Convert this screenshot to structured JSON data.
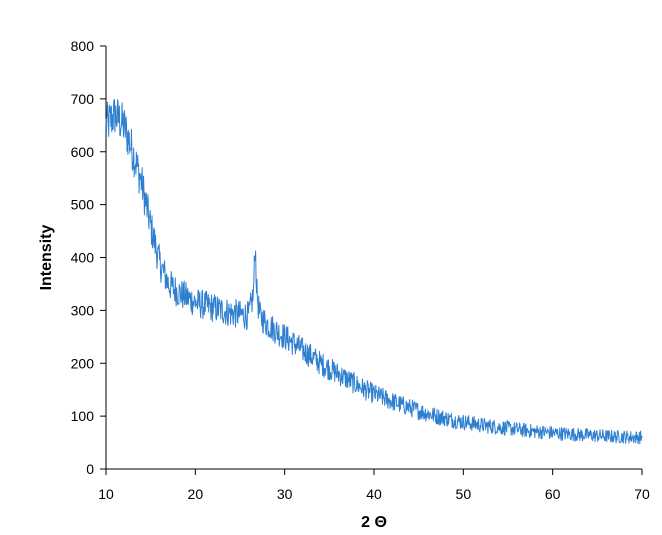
{
  "chart_data": {
    "type": "line",
    "title": "",
    "xlabel": "2 Θ",
    "ylabel": "Intensity",
    "xlim": [
      10,
      70
    ],
    "ylim": [
      0,
      800
    ],
    "x_ticks": [
      10,
      20,
      30,
      40,
      50,
      60,
      70
    ],
    "y_ticks": [
      0,
      100,
      200,
      300,
      400,
      500,
      600,
      700,
      800
    ],
    "x_tick_labels": [
      "10",
      "20",
      "30",
      "40",
      "50",
      "60",
      "70"
    ],
    "y_tick_labels": [
      "0",
      "100",
      "200",
      "300",
      "400",
      "500",
      "600",
      "700",
      "800"
    ],
    "grid": false,
    "legend": "none",
    "line_color": "#2f7fd0",
    "series": [
      {
        "x": [
          10,
          11,
          12,
          13,
          14,
          15,
          16,
          17,
          18,
          19,
          20,
          21,
          22,
          23,
          24,
          25,
          26,
          26.5,
          26.7,
          26.9,
          27.2,
          28,
          29,
          30,
          31,
          32,
          33,
          34,
          35,
          36,
          37,
          38,
          39,
          40,
          41,
          42,
          43,
          44,
          45,
          46,
          47,
          48,
          49,
          50,
          51,
          52,
          53,
          54,
          55,
          56,
          57,
          58,
          59,
          60,
          61,
          62,
          63,
          64,
          65,
          66,
          67,
          68,
          69,
          70
        ],
        "values": [
          650,
          670,
          650,
          600,
          540,
          460,
          390,
          350,
          335,
          325,
          315,
          310,
          305,
          300,
          295,
          292,
          290,
          330,
          425,
          330,
          290,
          275,
          262,
          250,
          238,
          225,
          213,
          200,
          190,
          180,
          170,
          160,
          150,
          142,
          135,
          128,
          122,
          116,
          110,
          105,
          100,
          96,
          92,
          89,
          86,
          83,
          81,
          79,
          77,
          75,
          73,
          71,
          70,
          68,
          67,
          66,
          65,
          64,
          63,
          62,
          61,
          61,
          60,
          60
        ]
      }
    ]
  }
}
